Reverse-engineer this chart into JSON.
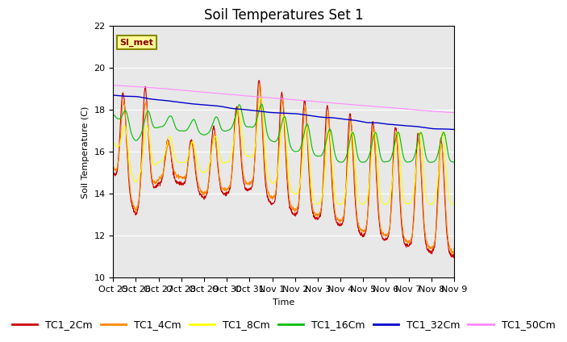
{
  "title": "Soil Temperatures Set 1",
  "xlabel": "Time",
  "ylabel": "Soil Temperature (C)",
  "ylim": [
    10,
    22
  ],
  "annotation": "SI_met",
  "xtick_labels": [
    "Oct 25",
    "Oct 26",
    "Oct 27",
    "Oct 28",
    "Oct 29",
    "Oct 30",
    "Oct 31",
    "Nov 1",
    "Nov 2",
    "Nov 3",
    "Nov 4",
    "Nov 5",
    "Nov 6",
    "Nov 7",
    "Nov 8",
    "Nov 9"
  ],
  "legend_labels": [
    "TC1_2Cm",
    "TC1_4Cm",
    "TC1_8Cm",
    "TC1_16Cm",
    "TC1_32Cm",
    "TC1_50Cm"
  ],
  "colors": [
    "#cc0000",
    "#ff8800",
    "#ffff00",
    "#00bb00",
    "#0000cc",
    "#ff88ff"
  ],
  "background_color": "#e8e8e8",
  "title_fontsize": 12,
  "axis_fontsize": 8,
  "legend_fontsize": 9,
  "n_days": 15,
  "pts_per_day": 96
}
